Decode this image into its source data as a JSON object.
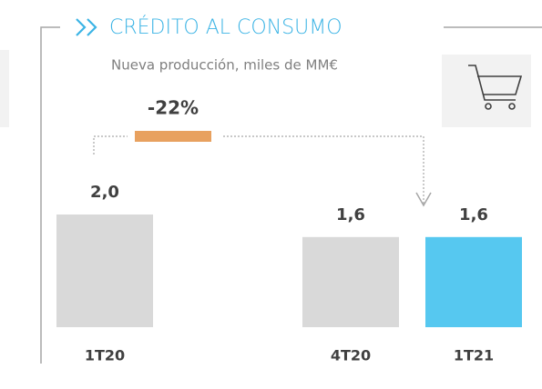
{
  "chart_data": {
    "type": "bar",
    "title": "CRÉDITO AL CONSUMO",
    "subtitle": "Nueva producción, miles de MM€",
    "annotation": "-22%",
    "categories": [
      "1T20",
      "4T20",
      "1T21"
    ],
    "values": [
      2.0,
      1.6,
      1.6
    ],
    "value_labels": [
      "2,0",
      "1,6",
      "1,6"
    ],
    "colors": [
      "#d9d9d9",
      "#d9d9d9",
      "#56c8f0"
    ]
  }
}
